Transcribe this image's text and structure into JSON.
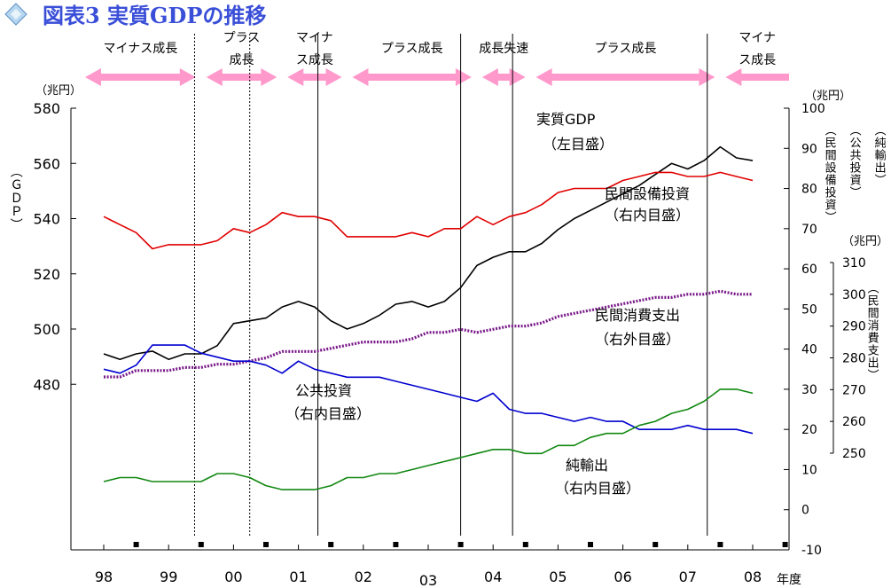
{
  "title": "図表3 実質GDPの推移",
  "colors": {
    "gdp": "#000000",
    "capex": "#e00000",
    "consumption": "#7a1a8a",
    "public": "#0000d0",
    "netexports": "#118811",
    "arrow": "#ff99cc",
    "title": "#3a4fd8"
  },
  "phases": [
    {
      "label": "マイナス成長",
      "from": 0.0,
      "to": 1.5
    },
    {
      "label": "プラス成長",
      "from": 1.5,
      "to": 2.75
    },
    {
      "label": "マイナス成長",
      "from": 2.75,
      "to": 3.75
    },
    {
      "label": "プラス成長",
      "from": 3.75,
      "to": 5.75
    },
    {
      "label": "成長失速",
      "from": 5.75,
      "to": 6.58
    },
    {
      "label": "プラス成長",
      "from": 6.58,
      "to": 9.5
    },
    {
      "label": "マイナス成長",
      "from": 9.5,
      "to": 10.6
    }
  ],
  "labels": {
    "unit_left": "（兆円）",
    "unit_right": "（兆円）",
    "unit_right2": "（兆円）",
    "left_axis": "（ＧＤＰ）",
    "right_axis_capex": "（民間設備投資）",
    "right_axis_public": "（公共投資）",
    "right_axis_netexports": "（純輸出）",
    "right_axis_consumption": "（民間消費支出）",
    "gdp_line1": "実質GDP",
    "gdp_line2": "（左目盛）",
    "capex_line1": "民間設備投資",
    "capex_line2": "（右内目盛）",
    "consumption_line1": "民間消費支出",
    "consumption_line2": "（右外目盛）",
    "public_line1": "公共投資",
    "public_line2": "（右内目盛）",
    "netexports_line1": "純輸出",
    "netexports_line2": "（右内目盛）",
    "fiscal_year": "年度"
  },
  "chart_data": {
    "type": "line",
    "title": "図表3 実質GDPの推移",
    "x_unit": "fiscal year, quarterly",
    "categories": [
      "98",
      "99",
      "00",
      "01",
      "02",
      "03",
      "04",
      "05",
      "06",
      "07",
      "08"
    ],
    "left_axis": {
      "label": "（ＧＤＰ）",
      "unit": "（兆円）",
      "ticks": [
        480,
        500,
        520,
        540,
        560,
        580
      ],
      "range": [
        420,
        580
      ]
    },
    "right_inner_axis": {
      "unit": "（兆円）",
      "ticks": [
        -10,
        0,
        10,
        20,
        30,
        40,
        50,
        60,
        70,
        80,
        90,
        100
      ],
      "range": [
        -10,
        100
      ]
    },
    "right_outer_axis": {
      "unit": "（兆円）",
      "label": "（民間消費支出）",
      "ticks": [
        250,
        260,
        270,
        280,
        290,
        300,
        310
      ],
      "range": [
        250,
        310
      ]
    },
    "series": [
      {
        "name": "実質GDP（左目盛）",
        "axis": "left",
        "x": [
          0.0,
          0.25,
          0.5,
          0.75,
          1.0,
          1.25,
          1.5,
          1.75,
          2.0,
          2.25,
          2.5,
          2.75,
          3.0,
          3.25,
          3.5,
          3.75,
          4.0,
          4.25,
          4.5,
          4.75,
          5.0,
          5.25,
          5.5,
          5.75,
          6.0,
          6.25,
          6.5,
          6.75,
          7.0,
          7.25,
          7.5,
          7.75,
          8.0,
          8.25,
          8.5,
          8.75,
          9.0,
          9.25,
          9.5,
          9.75,
          10.0
        ],
        "values": [
          491,
          489,
          491,
          492,
          489,
          491,
          491,
          494,
          502,
          503,
          504,
          508,
          510,
          508,
          503,
          500,
          502,
          505,
          509,
          510,
          508,
          510,
          515,
          523,
          526,
          528,
          528,
          531,
          536,
          540,
          543,
          546,
          549,
          552,
          556,
          560,
          558,
          561,
          566,
          562,
          561
        ]
      },
      {
        "name": "民間設備投資（右内目盛）",
        "axis": "right_inner",
        "x": [
          0.0,
          0.25,
          0.5,
          0.75,
          1.0,
          1.25,
          1.5,
          1.75,
          2.0,
          2.25,
          2.5,
          2.75,
          3.0,
          3.25,
          3.5,
          3.75,
          4.0,
          4.25,
          4.5,
          4.75,
          5.0,
          5.25,
          5.5,
          5.75,
          6.0,
          6.25,
          6.5,
          6.75,
          7.0,
          7.25,
          7.5,
          7.75,
          8.0,
          8.25,
          8.5,
          8.75,
          9.0,
          9.25,
          9.5,
          9.75,
          10.0
        ],
        "values": [
          73,
          71,
          69,
          65,
          66,
          66,
          66,
          67,
          70,
          69,
          71,
          74,
          73,
          73,
          72,
          68,
          68,
          68,
          68,
          69,
          68,
          70,
          70,
          73,
          71,
          73,
          74,
          76,
          79,
          80,
          80,
          80,
          82,
          83,
          84,
          84,
          83,
          83,
          84,
          83,
          82
        ]
      },
      {
        "name": "民間消費支出（右外目盛）",
        "axis": "right_outer",
        "x": [
          0.0,
          0.25,
          0.5,
          0.75,
          1.0,
          1.25,
          1.5,
          1.75,
          2.0,
          2.25,
          2.5,
          2.75,
          3.0,
          3.25,
          3.5,
          3.75,
          4.0,
          4.25,
          4.5,
          4.75,
          5.0,
          5.25,
          5.5,
          5.75,
          6.0,
          6.25,
          6.5,
          6.75,
          7.0,
          7.25,
          7.5,
          7.75,
          8.0,
          8.25,
          8.5,
          8.75,
          9.0,
          9.25,
          9.5,
          9.75,
          10.0
        ],
        "values": [
          274,
          274,
          276,
          276,
          276,
          277,
          277,
          278,
          278,
          279,
          280,
          282,
          282,
          282,
          283,
          284,
          285,
          285,
          285,
          286,
          288,
          288,
          289,
          288,
          289,
          290,
          290,
          291,
          293,
          294,
          295,
          296,
          297,
          298,
          299,
          299,
          300,
          300,
          301,
          300,
          300
        ]
      },
      {
        "name": "公共投資（右内目盛）",
        "axis": "right_inner",
        "x": [
          0.0,
          0.25,
          0.5,
          0.75,
          1.0,
          1.25,
          1.5,
          1.75,
          2.0,
          2.25,
          2.5,
          2.75,
          3.0,
          3.25,
          3.5,
          3.75,
          4.0,
          4.25,
          4.5,
          4.75,
          5.0,
          5.25,
          5.5,
          5.75,
          6.0,
          6.25,
          6.5,
          6.75,
          7.0,
          7.25,
          7.5,
          7.75,
          8.0,
          8.25,
          8.5,
          8.75,
          9.0,
          9.25,
          9.5,
          9.75,
          10.0
        ],
        "values": [
          35,
          34,
          36,
          41,
          41,
          41,
          39,
          38,
          37,
          37,
          36,
          34,
          37,
          35,
          34,
          33,
          33,
          33,
          32,
          31,
          30,
          29,
          28,
          27,
          29,
          25,
          24,
          24,
          23,
          22,
          23,
          22,
          22,
          20,
          20,
          20,
          21,
          20,
          20,
          20,
          19
        ]
      },
      {
        "name": "純輸出（右内目盛）",
        "axis": "right_inner",
        "x": [
          0.0,
          0.25,
          0.5,
          0.75,
          1.0,
          1.25,
          1.5,
          1.75,
          2.0,
          2.25,
          2.5,
          2.75,
          3.0,
          3.25,
          3.5,
          3.75,
          4.0,
          4.25,
          4.5,
          4.75,
          5.0,
          5.25,
          5.5,
          5.75,
          6.0,
          6.25,
          6.5,
          6.75,
          7.0,
          7.25,
          7.5,
          7.75,
          8.0,
          8.25,
          8.5,
          8.75,
          9.0,
          9.25,
          9.5,
          9.75,
          10.0
        ],
        "values": [
          7,
          8,
          8,
          7,
          7,
          7,
          7,
          9,
          9,
          8,
          6,
          5,
          5,
          5,
          6,
          8,
          8,
          9,
          9,
          10,
          11,
          12,
          13,
          14,
          15,
          15,
          14,
          14,
          16,
          16,
          18,
          19,
          19,
          21,
          22,
          24,
          25,
          27,
          30,
          30,
          29
        ]
      }
    ],
    "dividers": [
      1.4,
      2.25,
      3.3,
      5.5,
      6.3,
      9.3
    ],
    "dotted_dividers": [
      1.4,
      2.25
    ],
    "grid": false,
    "legend": "inline-labels"
  }
}
